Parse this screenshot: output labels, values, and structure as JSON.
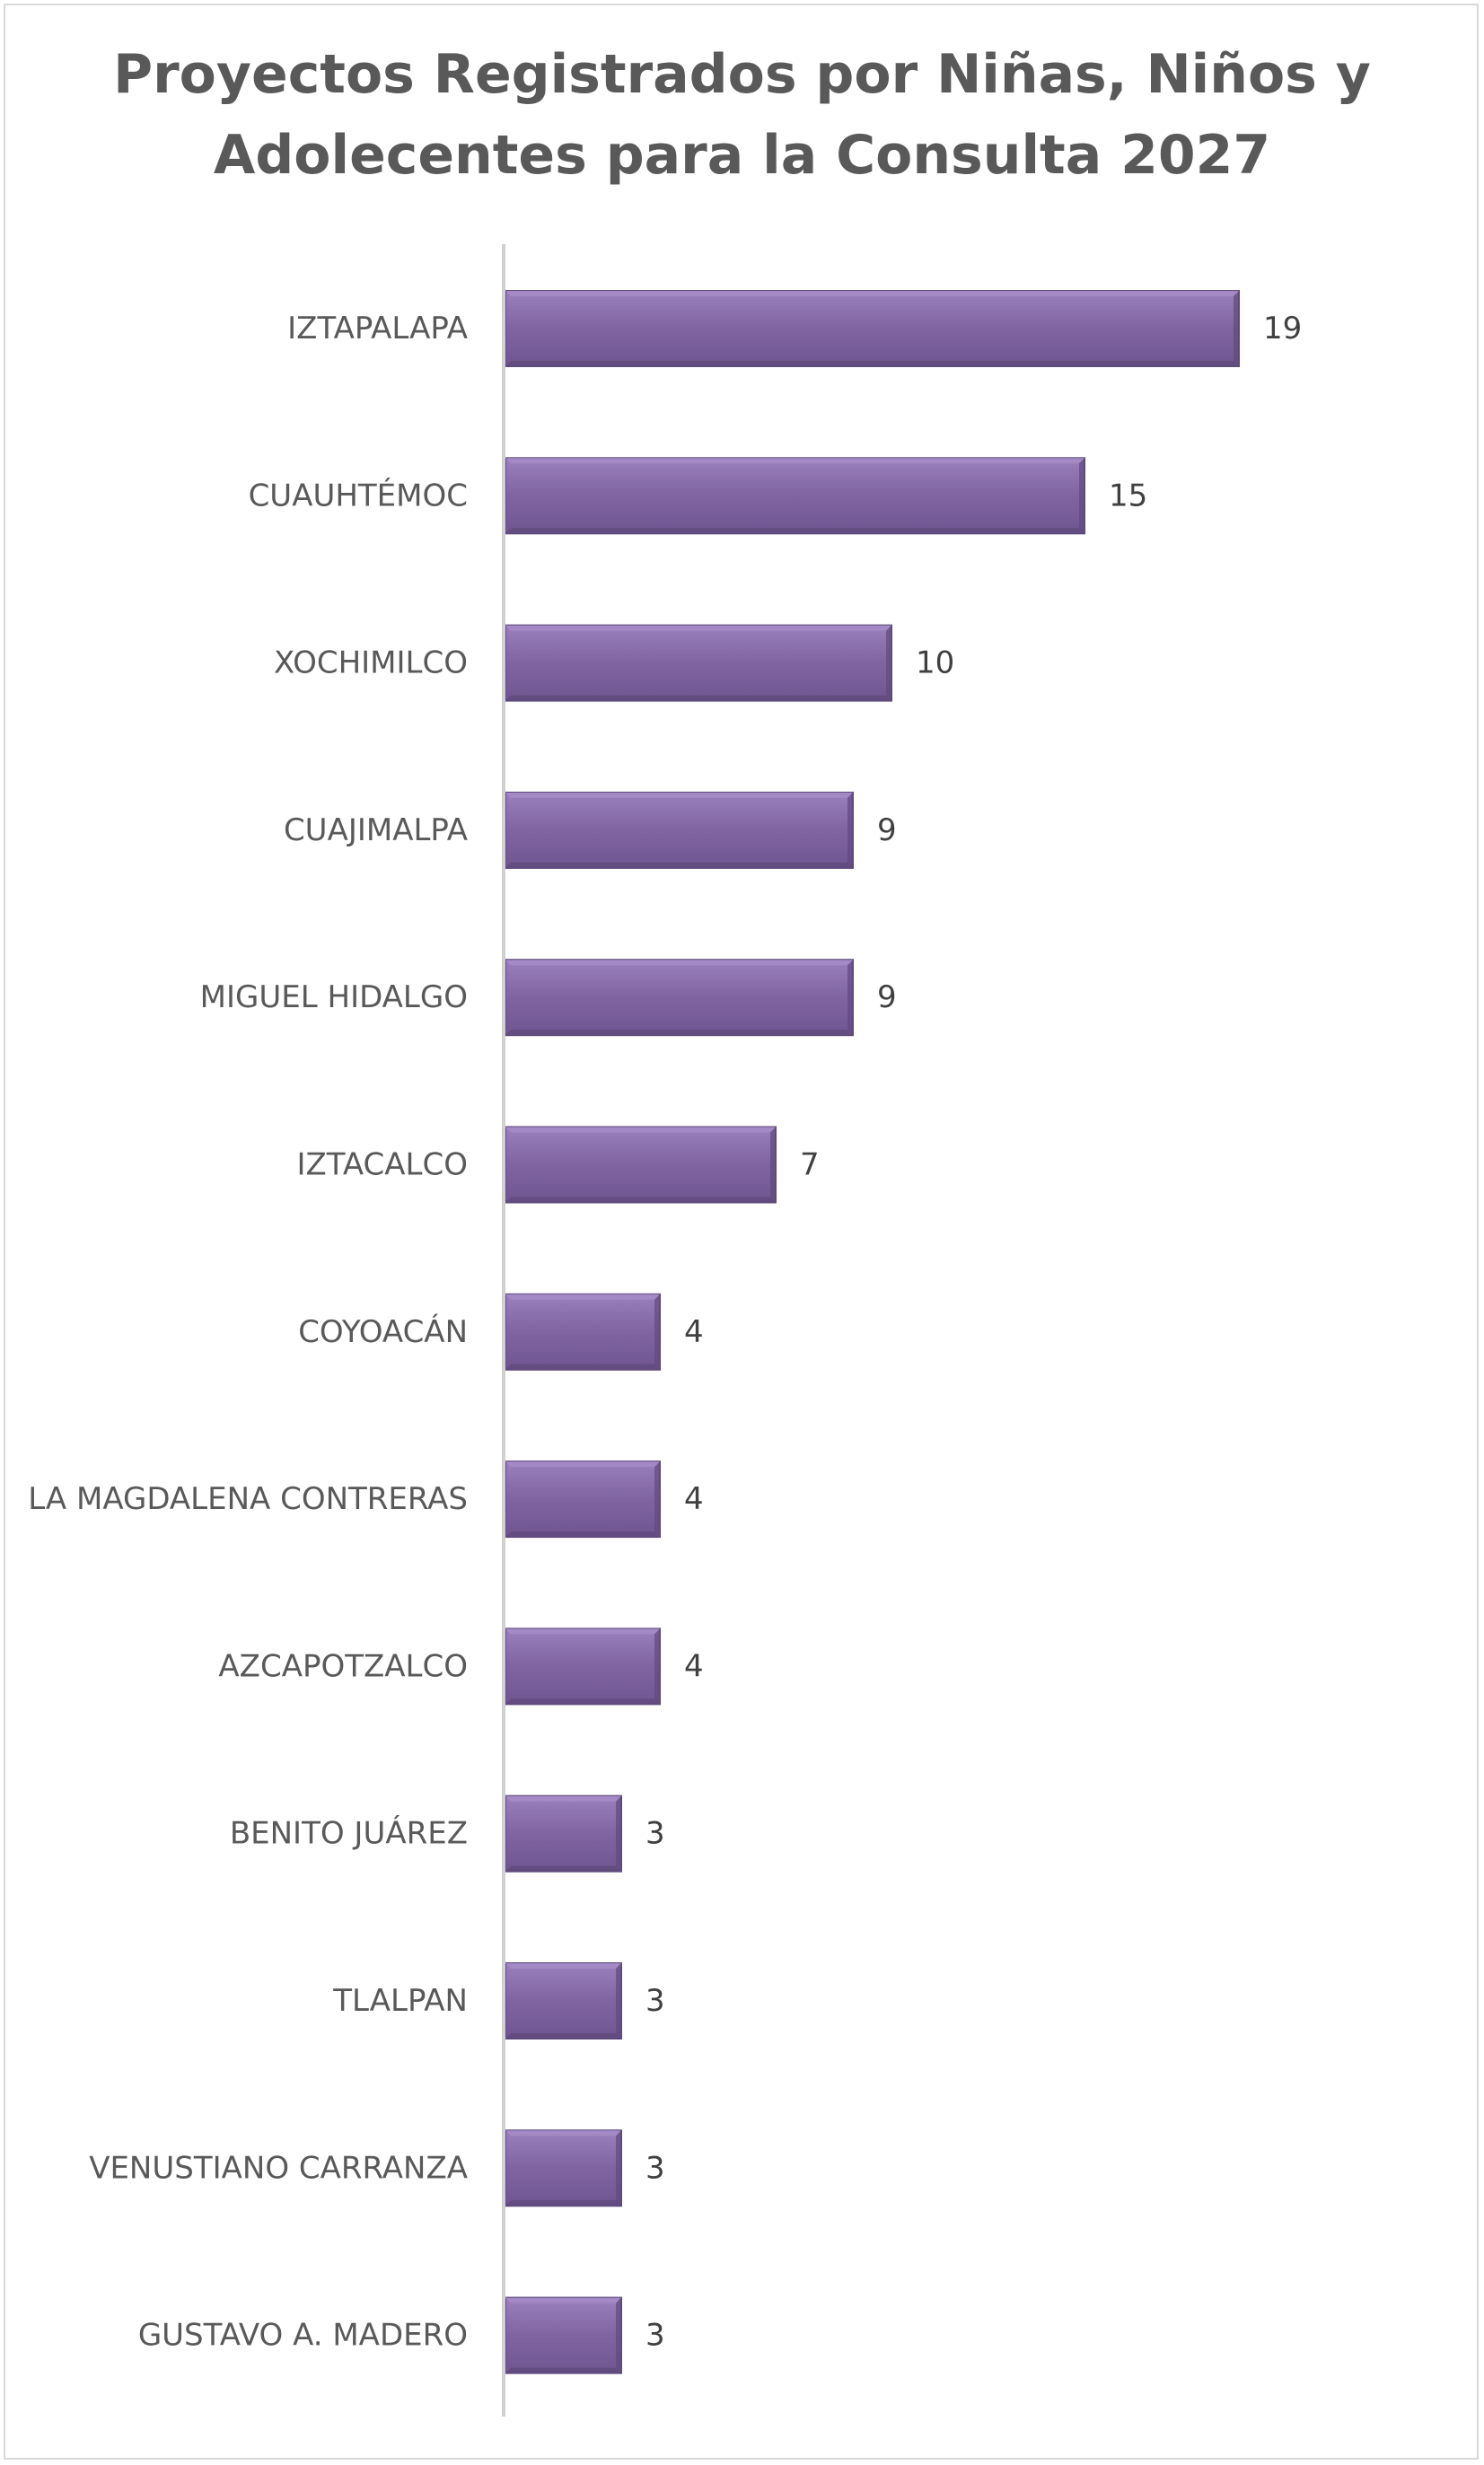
{
  "chart_data": {
    "type": "bar",
    "orientation": "horizontal",
    "title": "Proyectos Registrados por Niñas, Niños y\nAdolecentes para la Consulta 2027",
    "categories": [
      "IZTAPALAPA",
      "CUAUHTÉMOC",
      "XOCHIMILCO",
      "CUAJIMALPA",
      "MIGUEL HIDALGO",
      "IZTACALCO",
      "COYOACÁN",
      "LA MAGDALENA CONTRERAS",
      "AZCAPOTZALCO",
      "BENITO JUÁREZ",
      "TLALPAN",
      "VENUSTIANO CARRANZA",
      "GUSTAVO A. MADERO"
    ],
    "values": [
      19,
      15,
      10,
      9,
      9,
      7,
      4,
      4,
      4,
      3,
      3,
      3,
      3
    ],
    "data_labels": [
      "19",
      "15",
      "10",
      "9",
      "9",
      "7",
      "4",
      "4",
      "4",
      "3",
      "3",
      "3",
      "3"
    ],
    "xlim": [
      0,
      20
    ],
    "grid": false,
    "legend": "none",
    "colors": {
      "bar": "#8064a2",
      "bar_light": "#a58cc6",
      "bar_dark": "#5f4a7d",
      "axis": "#d0d0d0",
      "label": "#595959",
      "value": "#404040",
      "title": "#595959"
    }
  }
}
